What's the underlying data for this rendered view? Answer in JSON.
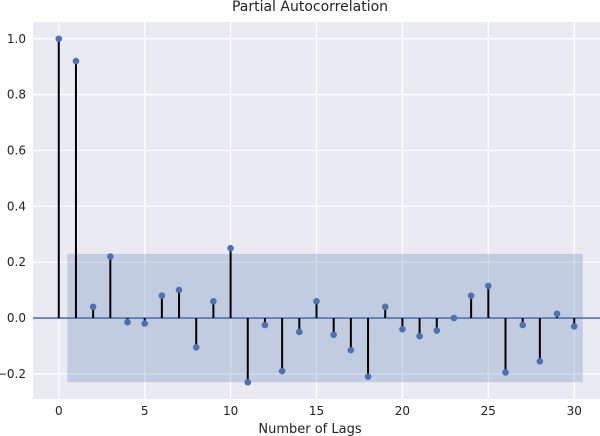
{
  "chart_data": {
    "type": "stem",
    "title": "Partial Autocorrelation",
    "xlabel": "Number of Lags",
    "ylabel": "",
    "xlim": [
      -1.5,
      31.5
    ],
    "ylim": [
      -0.29,
      1.06
    ],
    "x_ticks": [
      0,
      5,
      10,
      15,
      20,
      25,
      30
    ],
    "y_ticks": [
      -0.2,
      0.0,
      0.2,
      0.4,
      0.6,
      0.8,
      1.0
    ],
    "y_tick_labels": [
      "−0.2",
      "0.0",
      "0.2",
      "0.4",
      "0.6",
      "0.8",
      "1.0"
    ],
    "x": [
      0,
      1,
      2,
      3,
      4,
      5,
      6,
      7,
      8,
      9,
      10,
      11,
      12,
      13,
      14,
      15,
      16,
      17,
      18,
      19,
      20,
      21,
      22,
      23,
      24,
      25,
      26,
      27,
      28,
      29,
      30
    ],
    "values": [
      1.0,
      0.92,
      0.04,
      0.22,
      -0.015,
      -0.02,
      0.08,
      0.1,
      -0.105,
      0.06,
      0.25,
      -0.23,
      -0.025,
      -0.19,
      -0.05,
      0.06,
      -0.06,
      -0.115,
      -0.21,
      0.04,
      -0.04,
      -0.065,
      -0.045,
      0.0,
      0.08,
      0.115,
      -0.195,
      -0.025,
      -0.155,
      0.015,
      -0.03
    ],
    "confidence_band": {
      "x_start": 0.5,
      "x_end": 30.5,
      "lower": -0.23,
      "upper": 0.23
    },
    "grid": true,
    "colors": {
      "background": "#eaeaf2",
      "grid": "#ffffff",
      "stem": "#000000",
      "marker": "#4c72b0",
      "zero_line": "#4c72b0",
      "band": "#4c72b0"
    }
  }
}
